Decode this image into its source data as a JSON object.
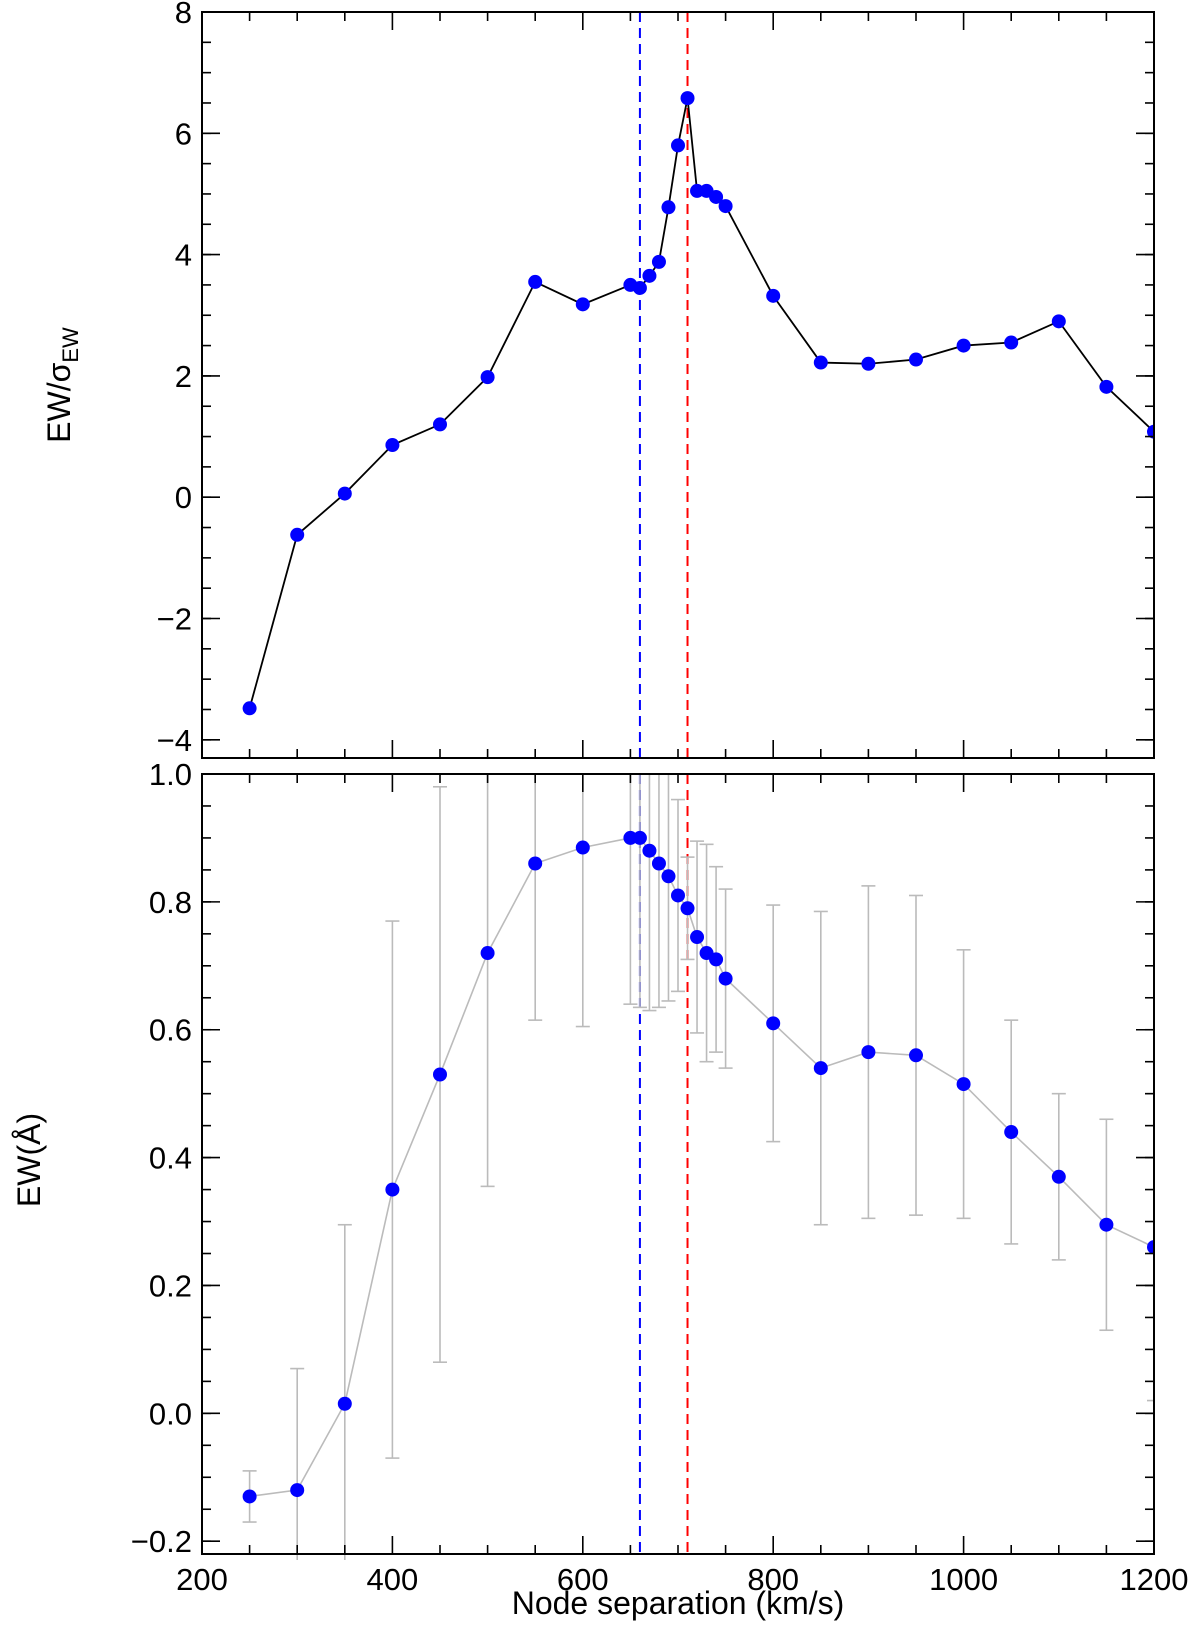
{
  "chart_data": [
    {
      "type": "line",
      "panel": "top",
      "ylabel": "EW/σ",
      "ylabel_sub": "EW",
      "xlabel": "",
      "xlim": [
        200,
        1200
      ],
      "ylim": [
        -4.3,
        8
      ],
      "yticks": [
        -4,
        -2,
        0,
        2,
        4,
        6,
        8
      ],
      "ytick_labels": [
        "−4",
        "−2",
        "0",
        "2",
        "4",
        "6",
        "8"
      ],
      "show_xtick_labels": false,
      "line_color": "#000000",
      "marker_color": "#0000ff",
      "series": [
        {
          "x": [
            250,
            300,
            350,
            400,
            450,
            500,
            550,
            600,
            650,
            660,
            670,
            680,
            690,
            700,
            710,
            720,
            730,
            740,
            750,
            800,
            850,
            900,
            950,
            1000,
            1050,
            1100,
            1150,
            1200
          ],
          "y": [
            -3.48,
            -0.62,
            0.06,
            0.86,
            1.2,
            1.98,
            3.55,
            3.18,
            3.5,
            3.45,
            3.65,
            3.88,
            4.78,
            5.8,
            6.58,
            5.05,
            5.05,
            4.95,
            4.8,
            3.32,
            2.22,
            2.2,
            2.27,
            2.5,
            2.55,
            2.9,
            1.82,
            1.08
          ]
        }
      ],
      "vlines": [
        {
          "x": 660,
          "color": "#0000ff",
          "style": "dashed"
        },
        {
          "x": 710,
          "color": "#ff0000",
          "style": "dashed"
        }
      ]
    },
    {
      "type": "line",
      "panel": "bottom",
      "ylabel": "EW(Å)",
      "xlabel": "Node separation (km/s)",
      "xlim": [
        200,
        1200
      ],
      "ylim": [
        -0.22,
        1.0
      ],
      "xticks": [
        200,
        400,
        600,
        800,
        1000,
        1200
      ],
      "xtick_labels": [
        "200",
        "400",
        "600",
        "800",
        "1000",
        "1200"
      ],
      "yticks": [
        -0.2,
        0.0,
        0.2,
        0.4,
        0.6,
        0.8,
        1.0
      ],
      "ytick_labels": [
        "−0.2",
        "0.0",
        "0.2",
        "0.4",
        "0.6",
        "0.8",
        "1.0"
      ],
      "line_color": "#bbbbbb",
      "marker_color": "#0000ff",
      "errorbar_color": "#bbbbbb",
      "series": [
        {
          "x": [
            250,
            300,
            350,
            400,
            450,
            500,
            550,
            600,
            650,
            660,
            670,
            680,
            690,
            700,
            710,
            720,
            730,
            740,
            750,
            800,
            850,
            900,
            950,
            1000,
            1050,
            1100,
            1150,
            1200
          ],
          "y": [
            -0.13,
            -0.12,
            0.015,
            0.35,
            0.53,
            0.72,
            0.86,
            0.885,
            0.9,
            0.9,
            0.88,
            0.86,
            0.84,
            0.81,
            0.79,
            0.745,
            0.72,
            0.71,
            0.68,
            0.61,
            0.54,
            0.565,
            0.56,
            0.515,
            0.44,
            0.37,
            0.295,
            0.26
          ],
          "err": [
            0.04,
            0.19,
            0.28,
            0.42,
            0.45,
            0.365,
            0.245,
            0.28,
            0.26,
            0.265,
            0.25,
            0.225,
            0.195,
            0.15,
            0.08,
            0.15,
            0.17,
            0.145,
            0.14,
            0.185,
            0.245,
            0.26,
            0.25,
            0.21,
            0.175,
            0.13,
            0.165,
            0.24
          ]
        }
      ],
      "vlines": [
        {
          "x": 660,
          "color": "#0000ff",
          "style": "dashed"
        },
        {
          "x": 710,
          "color": "#ff0000",
          "style": "dashed"
        }
      ]
    }
  ]
}
